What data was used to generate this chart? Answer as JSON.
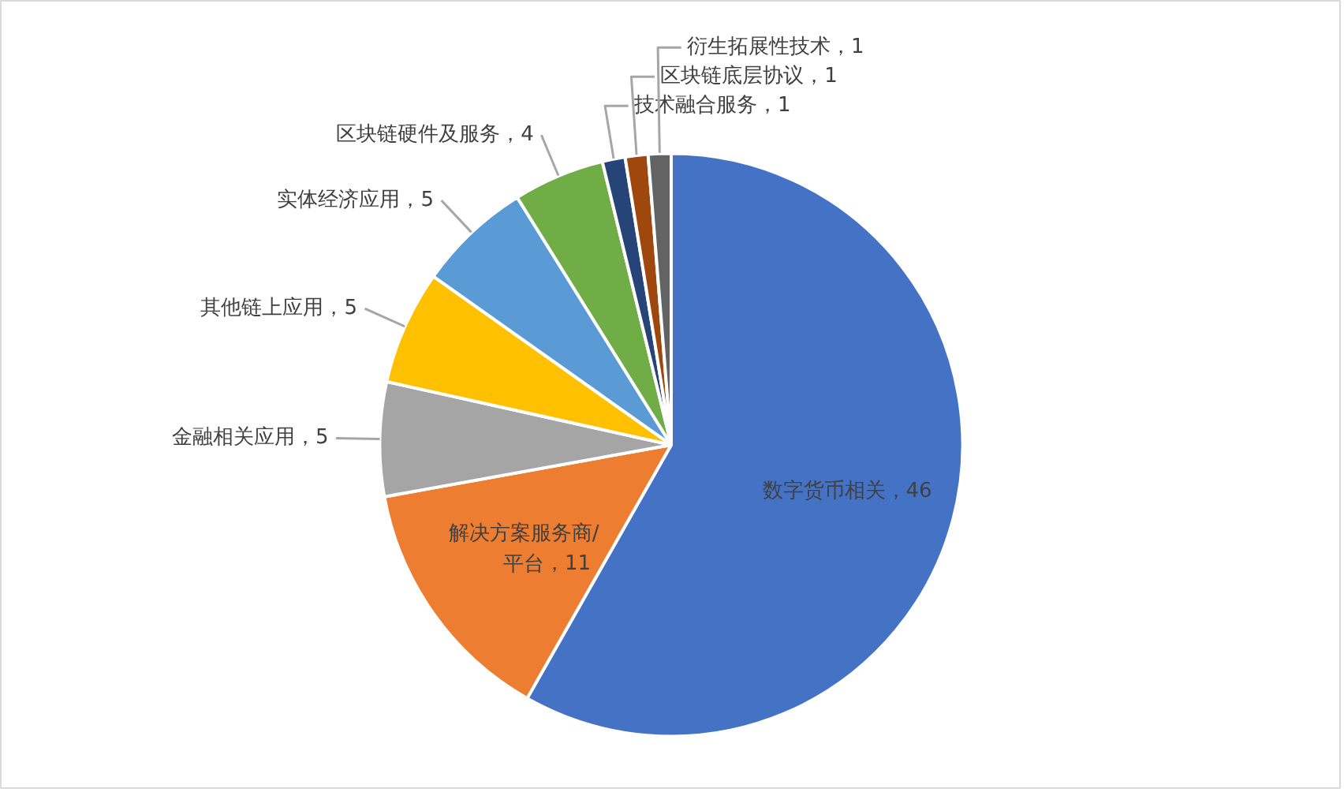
{
  "chart_data": {
    "type": "pie",
    "categories": [
      "数字货币相关",
      "解决方案服务商/平台",
      "金融相关应用",
      "其他链上应用",
      "实体经济应用",
      "区块链硬件及服务",
      "技术融合服务",
      "区块链底层协议",
      "衍生拓展性技术"
    ],
    "values": [
      46,
      11,
      5,
      5,
      5,
      4,
      1,
      1,
      1
    ],
    "colors": [
      "#4472c4",
      "#ed7d31",
      "#a5a5a5",
      "#ffc000",
      "#5b9bd5",
      "#70ad47",
      "#264478",
      "#9e480e",
      "#636363"
    ],
    "value_labels": [
      "，46",
      "，11",
      "，5",
      "，5",
      "，5",
      "，4",
      "，1",
      "，1",
      "，1"
    ]
  }
}
